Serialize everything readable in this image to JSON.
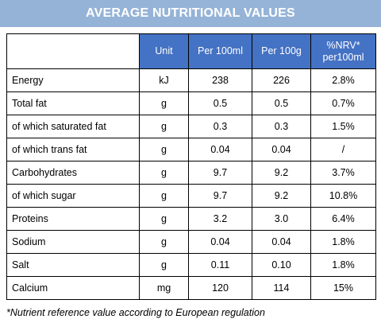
{
  "title": "AVERAGE NUTRITIONAL VALUES",
  "table": {
    "headers": {
      "unit": "Unit",
      "per100ml": "Per 100ml",
      "per100g": "Per 100g",
      "nrv_line1": "%NRV*",
      "nrv_line2": "per100ml"
    },
    "rows": [
      {
        "name": "Energy",
        "unit": "kJ",
        "per100ml": "238",
        "per100g": "226",
        "nrv": "2.8%"
      },
      {
        "name": "Total fat",
        "unit": "g",
        "per100ml": "0.5",
        "per100g": "0.5",
        "nrv": "0.7%"
      },
      {
        "name": "of which saturated fat",
        "unit": "g",
        "per100ml": "0.3",
        "per100g": "0.3",
        "nrv": "1.5%"
      },
      {
        "name": "of which trans fat",
        "unit": "g",
        "per100ml": "0.04",
        "per100g": "0.04",
        "nrv": "/"
      },
      {
        "name": "Carbohydrates",
        "unit": "g",
        "per100ml": "9.7",
        "per100g": "9.2",
        "nrv": "3.7%"
      },
      {
        "name": "of which sugar",
        "unit": "g",
        "per100ml": "9.7",
        "per100g": "9.2",
        "nrv": "10.8%"
      },
      {
        "name": "Proteins",
        "unit": "g",
        "per100ml": "3.2",
        "per100g": "3.0",
        "nrv": "6.4%"
      },
      {
        "name": "Sodium",
        "unit": "g",
        "per100ml": "0.04",
        "per100g": "0.04",
        "nrv": "1.8%"
      },
      {
        "name": "Salt",
        "unit": "g",
        "per100ml": "0.11",
        "per100g": "0.10",
        "nrv": "1.8%"
      },
      {
        "name": "Calcium",
        "unit": "mg",
        "per100ml": "120",
        "per100g": "114",
        "nrv": "15%"
      }
    ]
  },
  "footnote": "*Nutrient reference value according to European regulation",
  "colors": {
    "banner": "#95b3d7",
    "header": "#4472c4"
  }
}
